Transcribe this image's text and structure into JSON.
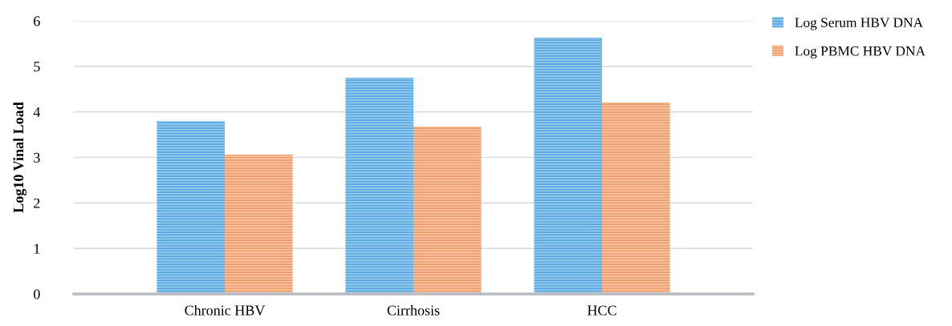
{
  "chart_data": {
    "type": "bar",
    "ylabel": "Log10 Vinal Load",
    "categories": [
      "Chronic HBV",
      "Cirrhosis",
      "HCC"
    ],
    "series": [
      {
        "name": "Log Serum HBV DNA",
        "color": "#5aa9e0",
        "values": [
          3.8,
          4.75,
          5.63
        ]
      },
      {
        "name": "Log PBMC HBV DNA",
        "color": "#ef9f6c",
        "values": [
          3.06,
          3.68,
          4.21
        ]
      }
    ],
    "ylim": [
      0,
      6
    ],
    "yticks": [
      0,
      1,
      2,
      3,
      4,
      5,
      6
    ],
    "grid": "y",
    "legend": "top right"
  }
}
